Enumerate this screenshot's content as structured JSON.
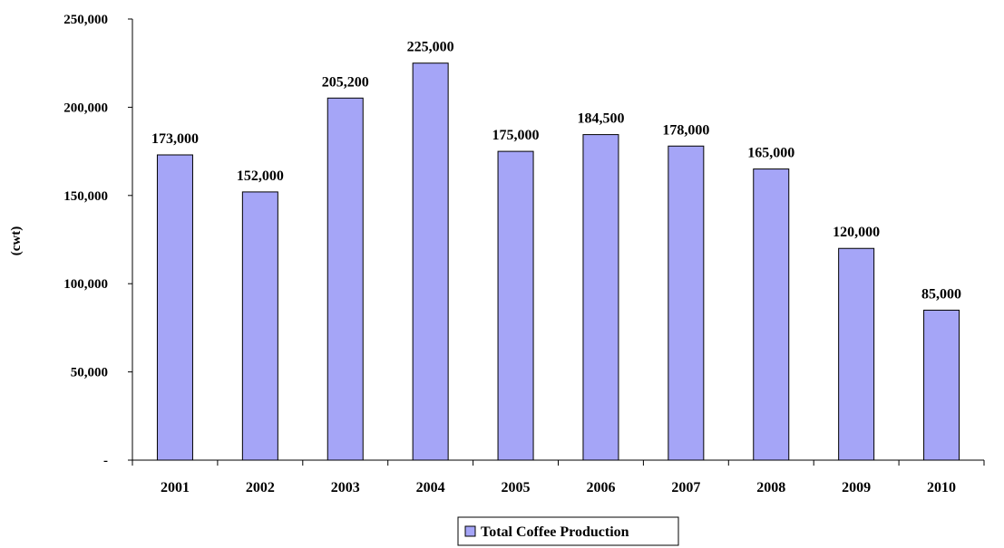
{
  "chart_data": {
    "type": "bar",
    "title": "",
    "xlabel": "",
    "ylabel": "(cwt)",
    "ylim": [
      0,
      250000
    ],
    "yticks": [
      0,
      50000,
      100000,
      150000,
      200000,
      250000
    ],
    "ytick_labels": [
      "-",
      "50,000",
      "100,000",
      "150,000",
      "200,000",
      "250,000"
    ],
    "categories": [
      "2001",
      "2002",
      "2003",
      "2004",
      "2005",
      "2006",
      "2007",
      "2008",
      "2009",
      "2010"
    ],
    "series": [
      {
        "name": "Total Coffee Production",
        "values": [
          173000,
          152000,
          205200,
          225000,
          175000,
          184500,
          178000,
          165000,
          120000,
          85000
        ],
        "data_labels": [
          "173,000",
          "152,000",
          "205,200",
          "225,000",
          "175,000",
          "184,500",
          "178,000",
          "165,000",
          "120,000",
          "85,000"
        ],
        "color": "#a5a5f7"
      }
    ],
    "grid": false,
    "legend_position": "bottom"
  }
}
